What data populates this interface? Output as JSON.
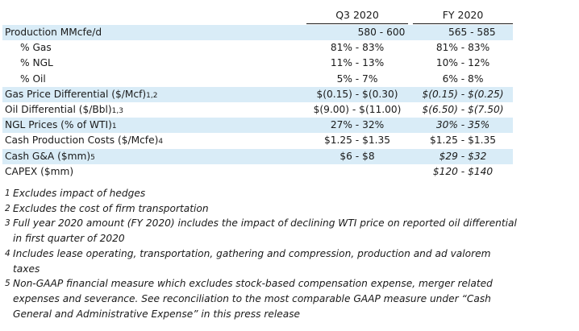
{
  "header": {
    "q3": "Q3 2020",
    "fy": "FY 2020"
  },
  "rows": [
    {
      "label": "Production MMcfe/d",
      "fn": "",
      "q3": "580 - 600",
      "fy": "565 - 585",
      "fy_italic": false
    },
    {
      "label": "% Gas",
      "fn": "",
      "q3": "81% - 83%",
      "fy": "81% - 83%",
      "fy_italic": false
    },
    {
      "label": "% NGL",
      "fn": "",
      "q3": "11% - 13%",
      "fy": "10% - 12%",
      "fy_italic": false
    },
    {
      "label": "% Oil",
      "fn": "",
      "q3": "5% - 7%",
      "fy": "6% - 8%",
      "fy_italic": false
    },
    {
      "label": "Gas Price Differential ($/Mcf)",
      "fn": "1,2",
      "q3": "$(0.15) - $(0.30)",
      "fy": "$(0.15) - $(0.25)",
      "fy_italic": true
    },
    {
      "label": "Oil Differential ($/Bbl)",
      "fn": "1,3",
      "q3": "$(9.00) - $(11.00)",
      "fy": "$(6.50) - $(7.50)",
      "fy_italic": true
    },
    {
      "label": "NGL Prices (% of WTI)",
      "fn": "1",
      "q3": "27% - 32%",
      "fy": "30% - 35%",
      "fy_italic": true
    },
    {
      "label": "Cash Production Costs ($/Mcfe)",
      "fn": "4",
      "q3": "$1.25 - $1.35",
      "fy": "$1.25 - $1.35",
      "fy_italic": false
    },
    {
      "label": "Cash G&A ($mm)",
      "fn": "5",
      "q3": "$6 - $8",
      "fy": "$29 - $32",
      "fy_italic": true
    },
    {
      "label": "CAPEX ($mm)",
      "fn": "",
      "q3": "",
      "fy": "$120 - $140",
      "fy_italic": true
    }
  ],
  "footnotes": [
    {
      "num": "1",
      "lines": [
        "Excludes impact of hedges"
      ]
    },
    {
      "num": "2",
      "lines": [
        "Excludes the cost of firm transportation"
      ]
    },
    {
      "num": "3",
      "lines": [
        "Full year 2020 amount (FY 2020) includes the impact of declining WTI price on reported oil differential",
        "in first quarter of 2020"
      ]
    },
    {
      "num": "4",
      "lines": [
        "Includes lease operating, transportation, gathering and compression, production and ad valorem",
        "taxes"
      ]
    },
    {
      "num": "5",
      "lines": [
        "Non-GAAP financial measure which excludes stock-based compensation expense, merger related",
        "expenses and severance. See reconciliation to the most comparable GAAP measure under “Cash",
        "General and Administrative Expense” in this press release"
      ]
    }
  ]
}
